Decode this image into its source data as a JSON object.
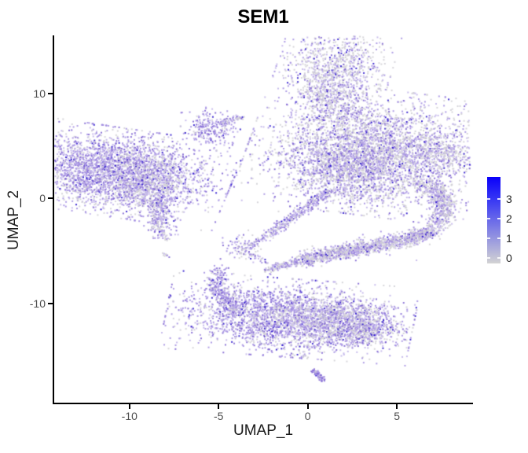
{
  "title": "SEM1",
  "axes": {
    "x": {
      "label": "UMAP_1",
      "ticks": [
        -10,
        -5,
        0,
        5
      ]
    },
    "y": {
      "label": "UMAP_2",
      "ticks": [
        10,
        0,
        -10
      ]
    }
  },
  "legend": {
    "tick_labels": [
      3,
      2,
      1,
      0
    ],
    "gradient_low_color": "#d3d3d3",
    "gradient_high_color": "#0a00fa"
  },
  "palette": {
    "colors": [
      "#d2d0d6",
      "#c2b5ea",
      "#a591e2",
      "#8065d2",
      "#2e17cd"
    ],
    "meaning": [
      "expression-0-grey",
      "expression-low",
      "expression-mid",
      "expression-high",
      "expression-max-blue"
    ]
  },
  "chart_data": {
    "type": "scatter",
    "title": "SEM1",
    "xlabel": "UMAP_1",
    "ylabel": "UMAP_2",
    "xlim": [
      -14.2,
      9.2
    ],
    "ylim": [
      -19.6,
      15.6
    ],
    "grid": false,
    "legend_position": "right",
    "colorbar": {
      "label_values": [
        0,
        1,
        2,
        3
      ],
      "min_color": "#d3d3d3",
      "max_color": "#0000ff"
    },
    "clusters": [
      {
        "name": "top-blob-upper",
        "type": "blob",
        "x": 1.45,
        "y": 12.2,
        "rx": 1.35,
        "ry": 2.0,
        "rot": -10,
        "n": 1000,
        "cw": [
          0.52,
          0.22,
          0.16,
          0.07,
          0.03
        ]
      },
      {
        "name": "top-blob-lower",
        "type": "blob",
        "x": 1.55,
        "y": 9.4,
        "rx": 0.85,
        "ry": 1.1,
        "rot": 0,
        "n": 260,
        "cw": [
          0.52,
          0.22,
          0.16,
          0.07,
          0.03
        ]
      },
      {
        "name": "top-trail",
        "type": "band",
        "pts": [
          [
            2.1,
            8.6
          ],
          [
            3.0,
            7.3
          ],
          [
            3.6,
            6.4
          ]
        ],
        "sd": 0.18,
        "n": 22,
        "cw": [
          0.45,
          0.22,
          0.2,
          0.1,
          0.03
        ]
      },
      {
        "name": "small-comet-blob",
        "type": "blob",
        "x": -5.45,
        "y": 6.6,
        "rx": 0.65,
        "ry": 0.85,
        "rot": 20,
        "n": 230,
        "cw": [
          0.15,
          0.25,
          0.4,
          0.17,
          0.03
        ]
      },
      {
        "name": "small-comet-arm",
        "type": "band",
        "pts": [
          [
            -5.0,
            7.1
          ],
          [
            -4.2,
            7.55
          ],
          [
            -3.7,
            7.8
          ]
        ],
        "sd": 0.15,
        "n": 70,
        "cw": [
          0.25,
          0.3,
          0.3,
          0.13,
          0.02
        ]
      },
      {
        "name": "right-fan-core",
        "type": "blob",
        "x": 3.6,
        "y": 4.4,
        "rx": 2.9,
        "ry": 2.5,
        "rot": -12,
        "n": 3800,
        "cw": [
          0.4,
          0.2,
          0.27,
          0.1,
          0.03
        ]
      },
      {
        "name": "right-fan-lower-fill",
        "type": "blob",
        "x": 2.2,
        "y": 2.6,
        "rx": 1.6,
        "ry": 1.6,
        "rot": 0,
        "n": 700,
        "cw": [
          0.4,
          0.2,
          0.27,
          0.1,
          0.03
        ]
      },
      {
        "name": "right-beak",
        "type": "blob",
        "x": 7.5,
        "y": 4.2,
        "rx": 0.85,
        "ry": 0.6,
        "rot": -25,
        "n": 260,
        "cw": [
          0.5,
          0.22,
          0.2,
          0.06,
          0.02
        ]
      },
      {
        "name": "funnel-band",
        "type": "band",
        "pts": [
          [
            1.1,
            0.6
          ],
          [
            0.1,
            -0.6
          ],
          [
            -1.0,
            -2.0
          ],
          [
            -2.4,
            -3.7
          ]
        ],
        "sd": 0.2,
        "n": 330,
        "cw": [
          0.25,
          0.25,
          0.33,
          0.14,
          0.03
        ]
      },
      {
        "name": "funnel-tip",
        "type": "band",
        "pts": [
          [
            -2.6,
            -3.9
          ],
          [
            -3.3,
            -4.6
          ]
        ],
        "sd": 0.12,
        "n": 40,
        "cw": [
          0.2,
          0.25,
          0.35,
          0.17,
          0.03
        ]
      },
      {
        "name": "bridge-blob",
        "type": "blob",
        "x": -3.7,
        "y": -4.8,
        "rx": 0.5,
        "ry": 0.6,
        "rot": 30,
        "n": 90,
        "cw": [
          0.3,
          0.25,
          0.3,
          0.12,
          0.03
        ]
      },
      {
        "name": "bridge-connector",
        "type": "band",
        "pts": [
          [
            -3.2,
            -5.3
          ],
          [
            -2.2,
            -6.2
          ]
        ],
        "sd": 0.1,
        "n": 25,
        "cw": [
          0.3,
          0.25,
          0.3,
          0.12,
          0.03
        ]
      },
      {
        "name": "right-descending-lobe",
        "type": "band",
        "pts": [
          [
            6.6,
            1.6
          ],
          [
            7.5,
            0.2
          ],
          [
            7.7,
            -1.2
          ],
          [
            7.2,
            -2.6
          ]
        ],
        "sd": 0.35,
        "n": 520,
        "cw": [
          0.45,
          0.22,
          0.23,
          0.08,
          0.02
        ]
      },
      {
        "name": "smile-band",
        "type": "band",
        "pts": [
          [
            -0.5,
            -6.0
          ],
          [
            1.5,
            -5.2
          ],
          [
            3.6,
            -4.6
          ],
          [
            5.6,
            -3.9
          ],
          [
            7.1,
            -3.1
          ]
        ],
        "sd": 0.33,
        "n": 1300,
        "cw": [
          0.45,
          0.2,
          0.25,
          0.08,
          0.02
        ]
      },
      {
        "name": "smile-left-tip",
        "type": "band",
        "pts": [
          [
            -2.4,
            -6.9
          ],
          [
            -0.5,
            -6.0
          ]
        ],
        "sd": 0.16,
        "n": 140,
        "cw": [
          0.4,
          0.25,
          0.25,
          0.08,
          0.02
        ]
      },
      {
        "name": "left-main-cluster",
        "type": "blob",
        "x": -10.8,
        "y": 2.5,
        "rx": 2.75,
        "ry": 1.75,
        "rot": -14,
        "n": 3200,
        "cw": [
          0.18,
          0.24,
          0.37,
          0.17,
          0.04
        ]
      },
      {
        "name": "left-grey-patch",
        "type": "blob",
        "x": -8.7,
        "y": 1.6,
        "rx": 0.9,
        "ry": 1.4,
        "rot": -10,
        "n": 450,
        "cw": [
          0.48,
          0.22,
          0.2,
          0.08,
          0.02
        ]
      },
      {
        "name": "left-tail",
        "type": "band",
        "pts": [
          [
            -8.5,
            -0.2
          ],
          [
            -8.2,
            -1.4
          ],
          [
            -8.4,
            -2.6
          ],
          [
            -8.0,
            -3.6
          ]
        ],
        "sd": 0.28,
        "n": 280,
        "cw": [
          0.35,
          0.25,
          0.27,
          0.1,
          0.03
        ]
      },
      {
        "name": "left-specks",
        "type": "band",
        "pts": [
          [
            -8.1,
            -5.2
          ],
          [
            -7.8,
            -5.6
          ]
        ],
        "sd": 0.08,
        "n": 10,
        "cw": [
          0.3,
          0.3,
          0.3,
          0.1,
          0.0
        ]
      },
      {
        "name": "bottom-left-arc",
        "type": "band",
        "pts": [
          [
            -4.9,
            -6.7
          ],
          [
            -5.2,
            -8.3
          ],
          [
            -4.6,
            -9.8
          ],
          [
            -3.6,
            -10.9
          ]
        ],
        "sd": 0.3,
        "n": 330,
        "cw": [
          0.18,
          0.22,
          0.38,
          0.18,
          0.04
        ]
      },
      {
        "name": "bottom-main-cluster",
        "type": "blob",
        "x": -1.0,
        "y": -11.4,
        "rx": 2.9,
        "ry": 1.55,
        "rot": -7,
        "n": 2800,
        "cw": [
          0.22,
          0.24,
          0.34,
          0.16,
          0.04
        ]
      },
      {
        "name": "bottom-grey-patch",
        "type": "blob",
        "x": 1.9,
        "y": -11.7,
        "rx": 1.4,
        "ry": 1.0,
        "rot": -10,
        "n": 550,
        "cw": [
          0.5,
          0.22,
          0.2,
          0.06,
          0.02
        ]
      },
      {
        "name": "bottom-right-tip",
        "type": "blob",
        "x": 3.3,
        "y": -12.6,
        "rx": 0.85,
        "ry": 0.75,
        "rot": -20,
        "n": 260,
        "cw": [
          0.45,
          0.22,
          0.22,
          0.08,
          0.03
        ]
      },
      {
        "name": "bottom-specks",
        "type": "band",
        "pts": [
          [
            -0.4,
            -14.8
          ],
          [
            -0.1,
            -15.2
          ]
        ],
        "sd": 0.1,
        "n": 8,
        "cw": [
          0.3,
          0.3,
          0.3,
          0.1,
          0.0
        ]
      },
      {
        "name": "bottom-streak",
        "type": "band",
        "pts": [
          [
            0.3,
            -16.3
          ],
          [
            0.9,
            -17.4
          ]
        ],
        "sd": 0.09,
        "n": 70,
        "cw": [
          0.05,
          0.15,
          0.45,
          0.3,
          0.05
        ]
      }
    ],
    "stray_points": [
      [
        8.5,
        3.3,
        2
      ],
      [
        2.9,
        13.3,
        4
      ],
      [
        -6.35,
        5.6,
        2
      ],
      [
        4.2,
        8.9,
        1
      ],
      [
        0.9,
        14.7,
        0
      ],
      [
        3.3,
        6.3,
        4
      ],
      [
        -0.4,
        8.8,
        2
      ],
      [
        5.9,
        7.6,
        2
      ],
      [
        -12.9,
        5.8,
        2
      ],
      [
        -2.5,
        -14.9,
        2
      ],
      [
        6.1,
        -5.9,
        1
      ]
    ]
  }
}
